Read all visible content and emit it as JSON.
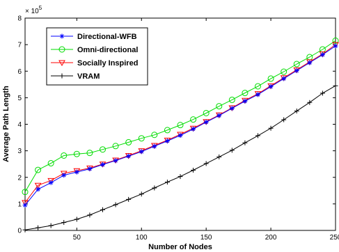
{
  "chart_data": {
    "type": "line",
    "xlabel": "Number of Nodes",
    "ylabel": "Average Path Length",
    "y_multiplier_label": "× 10",
    "y_multiplier_exp": "5",
    "xlim": [
      10,
      250
    ],
    "ylim": [
      0,
      8
    ],
    "x_ticks": [
      50,
      100,
      150,
      200,
      250
    ],
    "y_ticks": [
      0,
      1,
      2,
      3,
      4,
      5,
      6,
      7,
      8
    ],
    "grid": false,
    "legend_position": "top-left",
    "x": [
      10,
      20,
      30,
      40,
      50,
      60,
      70,
      80,
      90,
      100,
      110,
      120,
      130,
      140,
      150,
      160,
      170,
      180,
      190,
      200,
      210,
      220,
      230,
      240,
      250
    ],
    "series": [
      {
        "name": "Directional-WFB",
        "color": "#0000ff",
        "marker": "asterisk",
        "values": [
          0.95,
          1.55,
          1.8,
          2.08,
          2.2,
          2.32,
          2.48,
          2.63,
          2.8,
          2.97,
          3.17,
          3.37,
          3.58,
          3.82,
          4.08,
          4.33,
          4.6,
          4.87,
          5.12,
          5.42,
          5.72,
          6.02,
          6.32,
          6.62,
          6.95
        ]
      },
      {
        "name": "Omni-directional",
        "color": "#00dd00",
        "marker": "circle",
        "values": [
          1.45,
          2.28,
          2.53,
          2.82,
          2.88,
          2.92,
          3.05,
          3.18,
          3.32,
          3.47,
          3.6,
          3.78,
          3.97,
          4.18,
          4.42,
          4.68,
          4.92,
          5.18,
          5.43,
          5.72,
          5.98,
          6.27,
          6.53,
          6.82,
          7.15
        ]
      },
      {
        "name": "Socially Inspired",
        "color": "#ff0000",
        "marker": "triangle-down",
        "values": [
          1.05,
          1.7,
          1.88,
          2.15,
          2.25,
          2.35,
          2.5,
          2.65,
          2.82,
          3.0,
          3.2,
          3.4,
          3.62,
          3.85,
          4.1,
          4.35,
          4.62,
          4.9,
          5.15,
          5.45,
          5.75,
          6.05,
          6.35,
          6.65,
          7.0
        ]
      },
      {
        "name": "VRAM",
        "color": "#000000",
        "marker": "plus",
        "values": [
          0.02,
          0.1,
          0.18,
          0.3,
          0.42,
          0.58,
          0.78,
          0.97,
          1.17,
          1.37,
          1.6,
          1.82,
          2.03,
          2.27,
          2.52,
          2.77,
          3.02,
          3.3,
          3.57,
          3.85,
          4.17,
          4.5,
          4.82,
          5.17,
          5.45
        ]
      }
    ]
  }
}
